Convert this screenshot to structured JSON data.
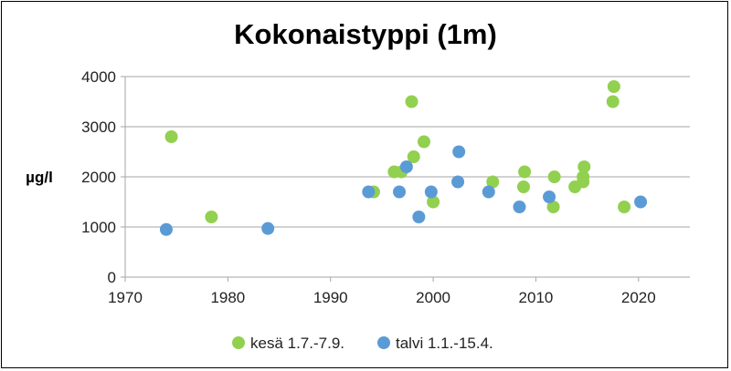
{
  "chart_data": {
    "type": "scatter",
    "title": "Kokonaistyppi (1m)",
    "ylabel": "µg/l",
    "xlabel": "",
    "xlim": [
      1970,
      2025
    ],
    "ylim": [
      0,
      4000
    ],
    "xticks": [
      1970,
      1980,
      1990,
      2000,
      2010,
      2020
    ],
    "yticks": [
      0,
      1000,
      2000,
      3000,
      4000
    ],
    "grid": "horizontal",
    "legend_position": "bottom",
    "series": [
      {
        "name": "kesä 1.7.-7.9.",
        "color": "#92d050",
        "points": [
          [
            1974.5,
            2800
          ],
          [
            1978.4,
            1200
          ],
          [
            1994.2,
            1700
          ],
          [
            1996.2,
            2100
          ],
          [
            1996.9,
            2100
          ],
          [
            1997.9,
            3500
          ],
          [
            1998.1,
            2400
          ],
          [
            1999.1,
            2700
          ],
          [
            2000.0,
            1500
          ],
          [
            2005.8,
            1900
          ],
          [
            2008.8,
            1800
          ],
          [
            2008.9,
            2100
          ],
          [
            2011.8,
            2000
          ],
          [
            2011.7,
            1400
          ],
          [
            2013.8,
            1800
          ],
          [
            2014.6,
            1900
          ],
          [
            2014.6,
            2000
          ],
          [
            2014.7,
            2200
          ],
          [
            2017.6,
            3800
          ],
          [
            2017.5,
            3500
          ],
          [
            2018.6,
            1400
          ]
        ]
      },
      {
        "name": "talvi 1.1.-15.4.",
        "color": "#5b9bd5",
        "points": [
          [
            1974.0,
            950
          ],
          [
            1983.9,
            970
          ],
          [
            1993.7,
            1700
          ],
          [
            1996.7,
            1700
          ],
          [
            1997.4,
            2200
          ],
          [
            1998.6,
            1200
          ],
          [
            1999.8,
            1700
          ],
          [
            2002.5,
            2500
          ],
          [
            2002.4,
            1900
          ],
          [
            2005.4,
            1700
          ],
          [
            2008.4,
            1400
          ],
          [
            2011.3,
            1600
          ],
          [
            2020.2,
            1500
          ]
        ]
      }
    ]
  }
}
